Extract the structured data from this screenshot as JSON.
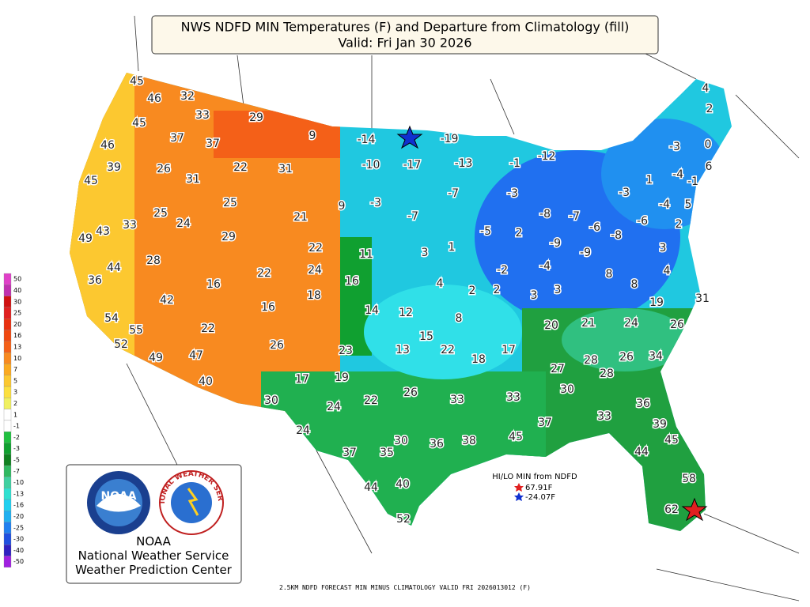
{
  "header": {
    "title": "NWS NDFD MIN Temperatures (F) and Departure from Climatology (fill)",
    "subtitle": "Valid: Fri Jan 30 2026"
  },
  "station_labels": [
    45,
    46,
    32,
    33,
    29,
    45,
    46,
    37,
    37,
    9,
    -14,
    -19,
    39,
    26,
    31,
    22,
    31,
    -10,
    -17,
    -13,
    -1,
    -12,
    45,
    25,
    21,
    9,
    -3,
    -7,
    -3,
    25,
    24,
    33,
    43,
    49,
    29,
    -7,
    -5,
    2,
    -8,
    -7,
    -6,
    -8,
    -6,
    -4,
    5,
    2,
    -3,
    0,
    -4,
    -1,
    6,
    1,
    -3,
    4,
    2,
    22,
    11,
    3,
    1,
    -9,
    -9,
    3,
    4,
    28,
    44,
    36,
    16,
    22,
    24,
    18,
    16,
    4,
    2,
    2,
    -2,
    -4,
    3,
    3,
    8,
    8,
    42,
    16,
    14,
    12,
    8,
    19,
    31,
    54,
    55,
    22,
    26,
    23,
    15,
    20,
    21,
    24,
    26,
    52,
    49,
    47,
    13,
    22,
    18,
    17,
    27,
    28,
    28,
    26,
    34,
    40,
    17,
    19,
    30,
    30,
    24,
    22,
    26,
    33,
    33,
    36,
    33,
    37,
    24,
    39,
    45,
    30,
    36,
    38,
    45,
    37,
    35,
    44,
    58,
    44,
    40,
    62,
    52
  ],
  "legend": {
    "values": [
      50,
      40,
      30,
      25,
      20,
      16,
      13,
      10,
      7,
      5,
      3,
      2,
      1,
      -1,
      -2,
      -3,
      -5,
      -7,
      -10,
      -13,
      -16,
      -20,
      -25,
      -30,
      -40,
      -50
    ],
    "colors": [
      "#e040c8",
      "#c030b0",
      "#d01010",
      "#e02020",
      "#e83010",
      "#f04810",
      "#f46018",
      "#f88a20",
      "#fbaa20",
      "#fcc830",
      "#fce040",
      "#f0f060",
      "#ffffff",
      "#ffffff",
      "#20c040",
      "#10a030",
      "#108020",
      "#30b860",
      "#40d0a0",
      "#30e0d0",
      "#20d0f0",
      "#20b0f0",
      "#2080f0",
      "#2050e0",
      "#3020c0",
      "#a020e0"
    ]
  },
  "hilo": {
    "title": "HI/LO MIN from NDFD",
    "high": "67.91F",
    "low": "-24.07F"
  },
  "logo": {
    "noaa": "NOAA",
    "ring": "NATIONAL WEATHER SERVICE",
    "line1": "National Weather Service",
    "line2": "Weather Prediction Center"
  },
  "footer": "2.5KM NDFD FORECAST MIN MINUS CLIMATOLOGY VALID FRI 2026013012 (F)"
}
